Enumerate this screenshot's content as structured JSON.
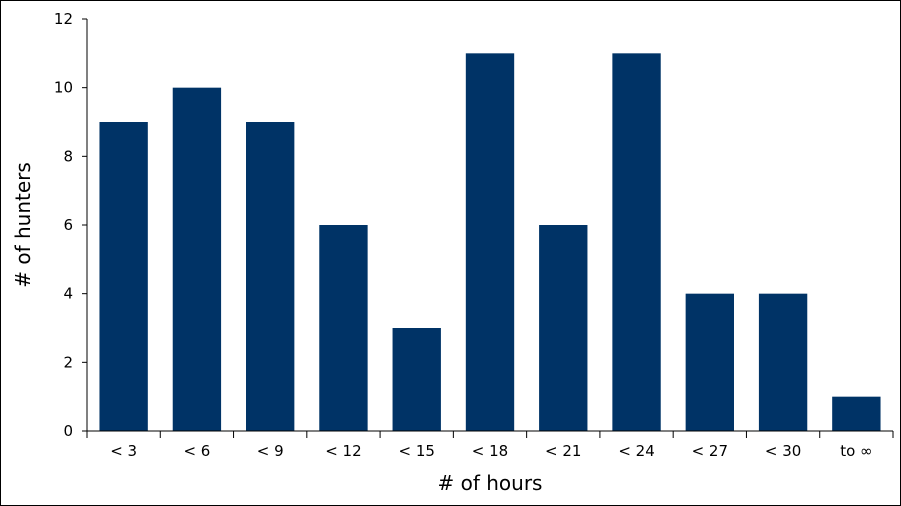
{
  "chart_data": {
    "type": "bar",
    "title": "",
    "xlabel": "# of hours",
    "ylabel": "# of hunters",
    "categories": [
      "< 3",
      "< 6",
      "< 9",
      "< 12",
      "< 15",
      "< 18",
      "< 21",
      "< 24",
      "< 27",
      "< 30",
      "to ∞"
    ],
    "values": [
      9,
      10,
      9,
      6,
      3,
      11,
      6,
      11,
      4,
      4,
      1
    ],
    "ylim": [
      0,
      12
    ],
    "yticks": [
      0,
      2,
      4,
      6,
      8,
      10,
      12
    ],
    "grid": false,
    "legend": "none",
    "bar_color": "#003366"
  }
}
